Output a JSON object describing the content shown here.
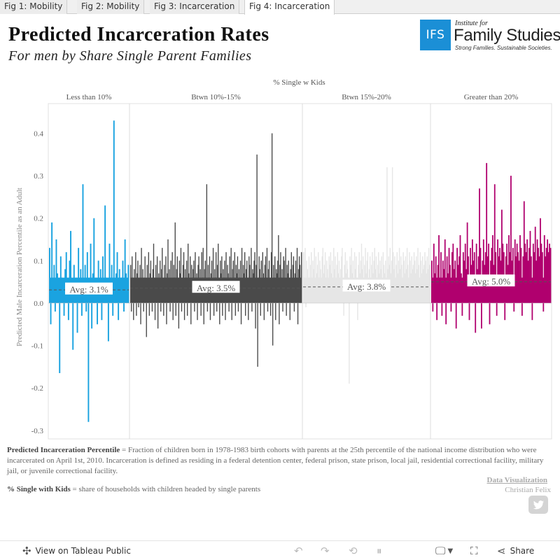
{
  "tabs": [
    "Fig 1: Mobility",
    "Fig 2: Mobility",
    "Fig 3: Incarceration",
    "Fig 4: Incarceration"
  ],
  "header": {
    "title": "Predicted Incarceration Rates",
    "subtitle": "For men by Share Single Parent Families"
  },
  "logo": {
    "box": "IFS",
    "institute": "Institute for",
    "name": "Family Studies",
    "tagline": "Strong Families. Sustainable Societies."
  },
  "chart_data": {
    "type": "bar",
    "column_header": "% Single w Kids",
    "ylabel": "Predicted Male Incarceration Percentile as an Adult",
    "ylim": [
      -0.32,
      0.47
    ],
    "yticks": [
      "0.4",
      "0.3",
      "0.2",
      "0.1",
      "0.0",
      "-0.1",
      "-0.2",
      "-0.3"
    ],
    "ytick_values": [
      0.4,
      0.3,
      0.2,
      0.1,
      0.0,
      -0.1,
      -0.2,
      -0.3
    ],
    "grid": false,
    "panels": [
      {
        "name": "Less than 10%",
        "color": "#1aa3e0",
        "avg_label": "Avg: 3.1%",
        "avg": 0.031,
        "values": [
          0.13,
          -0.05,
          0.19,
          0.04,
          0.09,
          -0.02,
          0.15,
          0.07,
          0.03,
          -0.165,
          0.11,
          0.06,
          0.02,
          -0.03,
          0.08,
          0.12,
          0.05,
          -0.04,
          0.1,
          0.17,
          0.04,
          -0.11,
          0.09,
          0.02,
          0.06,
          -0.07,
          0.13,
          0.03,
          0.08,
          -0.03,
          0.28,
          0.05,
          0.09,
          -0.02,
          0.12,
          -0.28,
          0.04,
          0.14,
          -0.06,
          0.07,
          0.2,
          0.03,
          0.06,
          -0.05,
          0.1,
          0.02,
          0.08,
          -0.04,
          0.11,
          0.05,
          0.23,
          0.06,
          0.03,
          -0.09,
          0.14,
          0.06,
          0.09,
          -0.03,
          0.43,
          0.05,
          0.07,
          0.12,
          -0.04,
          0.08,
          0.03,
          0.06,
          0.1,
          -0.02,
          0.15,
          0.07,
          0.04,
          0.09
        ]
      },
      {
        "name": "Btwn 10%-15%",
        "color": "#4a4a4a",
        "avg_label": "Avg: 3.5%",
        "avg": 0.035,
        "values": [
          0.09,
          -0.02,
          0.11,
          0.06,
          -0.04,
          0.08,
          0.03,
          0.12,
          -0.03,
          0.07,
          0.1,
          -0.01,
          0.05,
          0.09,
          -0.05,
          0.13,
          0.04,
          0.08,
          -0.02,
          0.06,
          0.11,
          0.03,
          -0.08,
          0.09,
          0.05,
          0.12,
          -0.03,
          0.07,
          0.1,
          0.04,
          -0.02,
          0.08,
          0.14,
          0.06,
          -0.04,
          0.09,
          0.03,
          0.11,
          -0.06,
          0.07,
          0.05,
          0.1,
          -0.02,
          0.08,
          0.13,
          0.04,
          -0.03,
          0.09,
          0.06,
          0.11,
          -0.05,
          0.07,
          0.15,
          0.03,
          0.08,
          -0.02,
          0.1,
          0.05,
          0.12,
          -0.04,
          0.09,
          0.06,
          0.19,
          -0.03,
          0.08,
          0.11,
          0.04,
          -0.06,
          0.1,
          0.07,
          0.13,
          -0.02,
          0.05,
          0.09,
          0.12,
          -0.04,
          0.08,
          0.06,
          0.1,
          -0.03,
          0.14,
          0.07,
          0.04,
          0.11,
          -0.05,
          0.09,
          0.06,
          0.08,
          0.1,
          -0.02,
          0.12,
          0.05,
          0.07,
          -0.04,
          0.09,
          0.11,
          0.03,
          0.08,
          -0.03,
          0.12,
          0.06,
          0.13,
          -0.05,
          0.08,
          0.1,
          0.04,
          0.28,
          -0.02,
          0.09,
          0.06,
          0.11,
          -0.04,
          0.07,
          0.1,
          0.05,
          0.13,
          -0.03,
          0.08,
          0.06,
          0.12,
          -0.02,
          0.09,
          0.14,
          0.05,
          -0.05,
          0.1,
          0.07,
          0.11,
          -0.03,
          0.08,
          0.06,
          0.1,
          -0.04,
          0.12,
          0.05,
          0.09,
          0.07,
          -0.02,
          0.11,
          0.06,
          0.13,
          -0.04,
          0.08,
          0.1,
          0.05,
          0.12,
          -0.03,
          0.09,
          0.07,
          0.11,
          -0.02,
          0.08,
          0.06,
          0.1,
          -0.05,
          0.13,
          0.04,
          0.09,
          0.07,
          0.12,
          -0.03,
          0.08,
          0.1,
          0.06,
          -0.04,
          0.11,
          0.09,
          0.05,
          0.13,
          -0.02,
          0.08,
          0.07,
          0.1,
          0.12,
          -0.06,
          0.09,
          0.35,
          -0.15,
          0.06,
          0.11,
          0.08,
          -0.03,
          0.1,
          0.05,
          0.12,
          0.07,
          -0.04,
          0.09,
          0.11,
          0.06,
          0.13,
          -0.02,
          0.08,
          0.1,
          0.05,
          -0.03,
          0.12,
          0.4,
          -0.1,
          0.09,
          0.06,
          0.11,
          -0.04,
          0.08,
          0.07,
          0.1,
          0.16,
          -0.05,
          0.09,
          0.12,
          0.06,
          0.08,
          -0.02,
          0.11,
          0.1,
          0.05,
          0.13,
          -0.03,
          0.09,
          0.07,
          0.1,
          0.06,
          -0.04,
          0.08,
          0.12,
          0.05,
          0.09,
          0.11,
          -0.02,
          0.07,
          0.1,
          0.06,
          0.13,
          -0.05,
          0.08,
          0.11,
          0.09,
          0.05,
          0.12
        ]
      },
      {
        "name": "Btwn 15%-20%",
        "color": "#e6e6e6",
        "avg_label": "Avg: 3.8%",
        "avg": 0.038,
        "values": [
          0.12,
          0.05,
          0.13,
          -0.01,
          0.1,
          0.08,
          0.04,
          0.11,
          0.06,
          0.09,
          0.12,
          0.05,
          0.1,
          0.08,
          0.13,
          0.04,
          0.11,
          0.07,
          0.09,
          0.12,
          0.06,
          0.1,
          0.08,
          0.05,
          0.11,
          0.13,
          0.07,
          0.09,
          0.12,
          0.06,
          0.1,
          0.08,
          0.04,
          0.11,
          0.09,
          0.12,
          0.07,
          0.1,
          0.06,
          0.13,
          0.08,
          0.11,
          0.05,
          0.09,
          0.12,
          0.07,
          0.1,
          0.06,
          0.08,
          0.11,
          0.13,
          0.05,
          -0.03,
          0.09,
          0.12,
          0.07,
          0.1,
          0.08,
          0.06,
          -0.19,
          0.11,
          0.09,
          0.13,
          0.07,
          0.1,
          0.05,
          0.12,
          0.08,
          0.11,
          0.06,
          -0.04,
          0.09,
          0.12,
          0.07,
          0.1,
          0.14,
          0.08,
          0.11,
          0.06,
          0.09,
          0.13,
          0.07,
          0.1,
          0.12,
          0.05,
          0.08,
          0.11,
          0.06,
          0.09,
          0.12,
          0.07,
          0.1,
          0.13,
          0.08,
          0.11,
          0.06,
          0.09,
          0.12,
          0.07,
          0.1,
          0.08,
          0.11,
          0.05,
          0.12,
          0.09,
          0.07,
          0.1,
          0.06,
          0.32,
          0.08,
          0.11,
          0.09,
          0.13,
          0.07,
          0.1,
          0.32,
          0.12,
          0.08,
          0.11,
          0.06,
          0.09,
          0.12,
          0.07,
          0.1,
          0.13,
          0.08,
          0.11,
          0.09,
          0.06,
          0.12,
          0.1,
          0.07,
          0.11,
          0.08,
          0.13,
          0.09,
          0.06,
          0.12,
          0.1,
          0.07,
          0.11,
          0.08,
          0.09,
          0.12,
          0.1,
          0.07,
          0.11,
          0.08,
          0.13,
          0.09,
          0.06,
          0.12,
          0.1,
          0.07,
          0.11,
          0.08,
          0.09,
          0.12,
          0.1,
          0.07,
          0.11,
          0.08,
          0.13,
          0.09
        ]
      },
      {
        "name": "Greater than 20%",
        "color": "#b0006e",
        "avg_label": "Avg: 5.0%",
        "avg": 0.05,
        "values": [
          0.1,
          -0.02,
          0.14,
          0.07,
          0.11,
          -0.04,
          0.09,
          0.16,
          0.06,
          0.12,
          -0.03,
          0.1,
          0.08,
          0.15,
          -0.05,
          0.11,
          0.07,
          0.13,
          0.09,
          -0.02,
          0.12,
          0.14,
          0.08,
          0.1,
          -0.06,
          0.13,
          0.09,
          0.11,
          0.16,
          0.07,
          -0.03,
          0.12,
          0.1,
          0.14,
          0.08,
          0.19,
          0.11,
          -0.04,
          0.13,
          0.09,
          0.15,
          0.1,
          0.12,
          -0.07,
          0.14,
          0.08,
          0.11,
          0.27,
          0.13,
          -0.06,
          0.1,
          0.15,
          0.09,
          0.12,
          0.33,
          0.11,
          0.14,
          -0.05,
          0.1,
          0.13,
          0.16,
          0.09,
          0.28,
          0.12,
          -0.03,
          0.15,
          0.11,
          0.13,
          0.1,
          0.22,
          0.14,
          0.12,
          -0.04,
          0.11,
          0.14,
          0.09,
          0.16,
          0.12,
          0.3,
          0.1,
          0.13,
          -0.02,
          0.15,
          0.11,
          0.14,
          0.12,
          0.1,
          0.16,
          0.13,
          -0.03,
          0.11,
          0.24,
          0.14,
          0.12,
          0.15,
          0.1,
          0.13,
          0.17,
          0.11,
          -0.04,
          0.14,
          0.12,
          0.18,
          0.1,
          0.15,
          0.13,
          0.11,
          0.2,
          0.14,
          0.12,
          -0.02,
          0.16,
          0.11,
          0.13,
          0.15,
          0.12,
          0.14,
          0.13
        ]
      }
    ]
  },
  "notes": {
    "def1_term": "Predicted Incarceration Percentile",
    "def1_text": " = Fraction of children born in 1978-1983 birth cohorts with parents at the 25th percentile of the national income distribution who were incarcerated on April 1st, 2010. Incarceration is defined as residing in a federal detention center, federal prison, state prison, local jail, residential correctional facility, military jail, or juvenile correctional facility.",
    "def2_term": "% Single with Kids",
    "def2_text": " = share of households with children headed by single parents",
    "credit_link": "Data Visualization",
    "credit_name": "Christian Felix"
  },
  "toolbar": {
    "view_label": "View on Tableau Public",
    "share_label": "Share"
  },
  "colors": {
    "ifs_blue": "#1b8fd6",
    "zero_line": "#bbbbbb",
    "avg_line": "#555555"
  }
}
